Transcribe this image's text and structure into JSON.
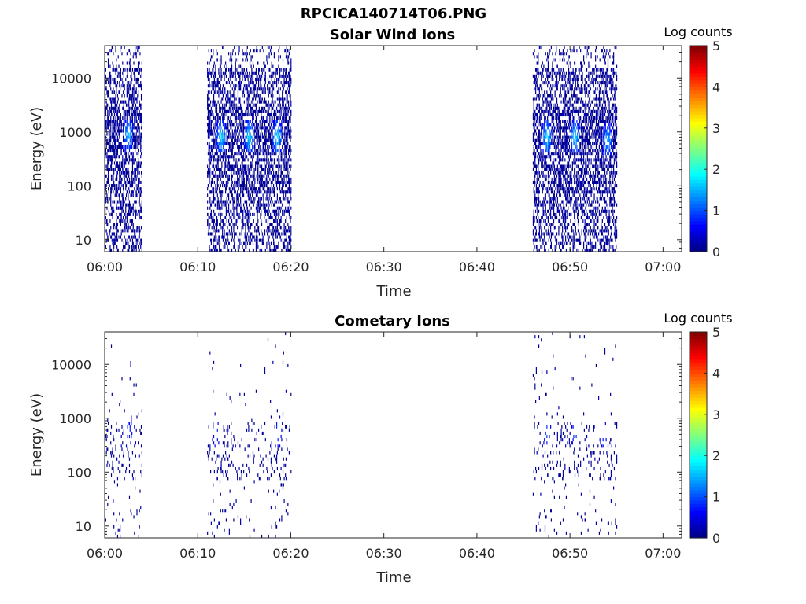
{
  "figure": {
    "title": "RPCICA140714T06.PNG"
  },
  "chart_data": [
    {
      "type": "heatmap",
      "title": "Solar Wind Ions",
      "xlabel": "Time",
      "ylabel": "Energy (eV)",
      "x_ticks": [
        "06:00",
        "06:10",
        "06:20",
        "06:30",
        "06:40",
        "06:50",
        "07:00"
      ],
      "xlim": [
        "06:00",
        "07:02"
      ],
      "y_scale": "log",
      "y_ticks": [
        "10",
        "100",
        "1000",
        "10000"
      ],
      "ylim": [
        6,
        40000
      ],
      "colorbar": {
        "label": "Log counts",
        "ticks": [
          "0",
          "1",
          "2",
          "3",
          "4",
          "5"
        ],
        "range": [
          0,
          5
        ],
        "colormap": "jet"
      },
      "data_intervals": [
        {
          "start": "06:00",
          "end": "06:04"
        },
        {
          "start": "06:11",
          "end": "06:20"
        },
        {
          "start": "06:46",
          "end": "06:55"
        }
      ],
      "peaks": [
        {
          "time": "06:02.5",
          "energy_eV": 900,
          "log_counts": 1.7
        },
        {
          "time": "06:12.5",
          "energy_eV": 800,
          "log_counts": 1.8
        },
        {
          "time": "06:15.5",
          "energy_eV": 800,
          "log_counts": 1.8
        },
        {
          "time": "06:18.5",
          "energy_eV": 800,
          "log_counts": 1.8
        },
        {
          "time": "06:47.5",
          "energy_eV": 800,
          "log_counts": 1.8
        },
        {
          "time": "06:50.5",
          "energy_eV": 800,
          "log_counts": 1.8
        },
        {
          "time": "06:54",
          "energy_eV": 700,
          "log_counts": 1.6
        }
      ]
    },
    {
      "type": "heatmap",
      "title": "Cometary Ions",
      "xlabel": "Time",
      "ylabel": "Energy (eV)",
      "x_ticks": [
        "06:00",
        "06:10",
        "06:20",
        "06:30",
        "06:40",
        "06:50",
        "07:00"
      ],
      "xlim": [
        "06:00",
        "07:02"
      ],
      "y_scale": "log",
      "y_ticks": [
        "10",
        "100",
        "1000",
        "10000"
      ],
      "ylim": [
        6,
        40000
      ],
      "colorbar": {
        "label": "Log counts",
        "ticks": [
          "0",
          "1",
          "2",
          "3",
          "4",
          "5"
        ],
        "range": [
          0,
          5
        ],
        "colormap": "jet"
      },
      "data_intervals": [
        {
          "start": "06:00",
          "end": "06:04"
        },
        {
          "start": "06:11",
          "end": "06:20"
        },
        {
          "start": "06:46",
          "end": "06:55"
        }
      ],
      "peaks": [
        {
          "time": "06:02.5",
          "energy_eV": 550,
          "log_counts": 1.0
        },
        {
          "time": "06:12",
          "energy_eV": 550,
          "log_counts": 1.0
        },
        {
          "time": "06:18.5",
          "energy_eV": 550,
          "log_counts": 1.1
        },
        {
          "time": "06:47.5",
          "energy_eV": 550,
          "log_counts": 1.1
        },
        {
          "time": "06:50.5",
          "energy_eV": 550,
          "log_counts": 1.1
        },
        {
          "time": "06:53.5",
          "energy_eV": 500,
          "log_counts": 0.9
        }
      ]
    }
  ]
}
